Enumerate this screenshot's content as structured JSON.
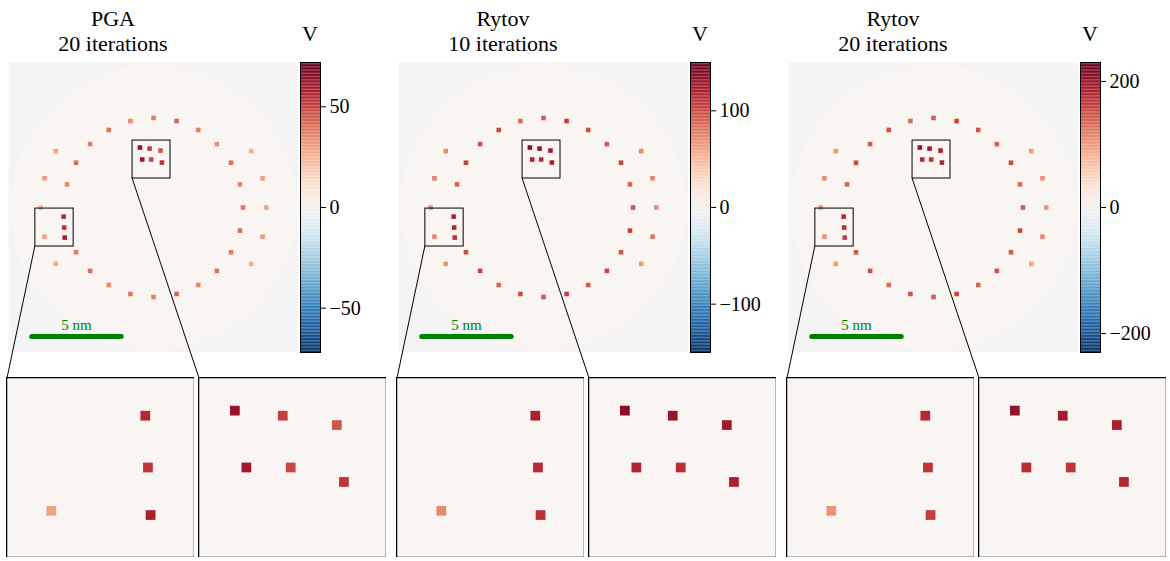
{
  "chart_data": [
    {
      "type": "heatmap",
      "title": "PGA",
      "subtitle": "20 iterations",
      "tick_labels": false,
      "xlim": [
        -8.1,
        8.1
      ],
      "ylim": [
        -8.1,
        8.1
      ],
      "disk_radius": 8,
      "colorbar": {
        "label": "V",
        "range": [
          -72,
          72
        ],
        "ticks": [
          -50,
          0,
          50
        ]
      },
      "scale_bar": {
        "length": 5,
        "label": "5 nm"
      },
      "insets": [
        {
          "xlim": [
            -6.6,
            -4.46
          ],
          "ylim": [
            -2.18,
            -0.06
          ]
        },
        {
          "xlim": [
            -1.17,
            0.95
          ],
          "ylim": [
            1.62,
            3.74
          ]
        }
      ],
      "peaks": {
        "x": [
          5,
          4.83,
          4.33,
          3.54,
          2.5,
          1.29,
          0,
          -1.29,
          -2.5,
          -3.54,
          -4.33,
          -4.83,
          -4.33,
          -3.54,
          -2.5,
          -1.29,
          0,
          1.29,
          2.5,
          3.54,
          4.33,
          4.83,
          -5.02,
          -4.99,
          -4.96,
          -0.76,
          -0.22,
          -0.63,
          -0.13,
          0.39,
          0.47,
          -5.46,
          -6.09,
          -6.3,
          -6.09,
          -5.46,
          5.46,
          6.09,
          6.3,
          6.09,
          5.46
        ],
        "y": [
          0,
          1.29,
          2.5,
          3.54,
          4.33,
          4.83,
          5,
          4.83,
          4.33,
          3.54,
          2.5,
          1.29,
          -2.5,
          -3.54,
          -4.33,
          -4.83,
          -5,
          -4.83,
          -4.33,
          -3.54,
          -2.5,
          -1.29,
          -0.51,
          -1.12,
          -1.68,
          3.35,
          3.29,
          2.68,
          2.68,
          3.18,
          2.51,
          3.15,
          1.63,
          0,
          -1.63,
          -3.15,
          -3.15,
          -1.63,
          0,
          1.63,
          3.15
        ],
        "values": [
          38,
          35,
          40,
          33,
          36,
          42,
          37,
          34,
          39,
          36,
          41,
          35,
          37,
          40,
          34,
          38,
          36,
          42,
          35,
          39,
          37,
          40,
          55,
          52,
          58,
          62,
          50,
          60,
          48,
          45,
          52,
          28,
          30,
          26,
          29,
          27,
          25,
          31,
          28,
          30,
          26
        ]
      }
    },
    {
      "type": "heatmap",
      "title": "Rytov",
      "subtitle": "10 iterations",
      "tick_labels": false,
      "xlim": [
        -8.1,
        8.1
      ],
      "ylim": [
        -8.1,
        8.1
      ],
      "disk_radius": 8,
      "colorbar": {
        "label": "V",
        "range": [
          -150,
          150
        ],
        "ticks": [
          -100,
          0,
          100
        ]
      },
      "scale_bar": {
        "length": 5,
        "label": "5 nm"
      },
      "insets": [
        {
          "xlim": [
            -6.6,
            -4.46
          ],
          "ylim": [
            -2.18,
            -0.06
          ]
        },
        {
          "xlim": [
            -1.17,
            0.95
          ],
          "ylim": [
            1.62,
            3.74
          ]
        }
      ],
      "peaks": {
        "x": [
          5,
          4.83,
          4.33,
          3.54,
          2.5,
          1.29,
          0,
          -1.29,
          -2.5,
          -3.54,
          -4.33,
          -4.83,
          -4.33,
          -3.54,
          -2.5,
          -1.29,
          0,
          1.29,
          2.5,
          3.54,
          4.33,
          4.83,
          -5.02,
          -4.99,
          -4.96,
          -0.76,
          -0.22,
          -0.63,
          -0.13,
          0.39,
          0.47,
          -5.46,
          -6.09,
          -6.3,
          -6.09,
          -5.46,
          5.46,
          6.09,
          6.3,
          6.09,
          5.46
        ],
        "y": [
          0,
          1.29,
          2.5,
          3.54,
          4.33,
          4.83,
          5,
          4.83,
          4.33,
          3.54,
          2.5,
          1.29,
          -2.5,
          -3.54,
          -4.33,
          -4.83,
          -5,
          -4.83,
          -4.33,
          -3.54,
          -2.5,
          -1.29,
          -0.51,
          -1.12,
          -1.68,
          3.35,
          3.29,
          2.68,
          2.68,
          3.18,
          2.51,
          3.15,
          1.63,
          0,
          -1.63,
          -3.15,
          -3.15,
          -1.63,
          0,
          1.63,
          3.15
        ],
        "values": [
          95,
          88,
          102,
          90,
          97,
          105,
          92,
          86,
          99,
          94,
          103,
          89,
          96,
          101,
          87,
          98,
          93,
          106,
          91,
          100,
          95,
          104,
          120,
          115,
          110,
          135,
          128,
          118,
          112,
          125,
          120,
          70,
          75,
          68,
          72,
          66,
          64,
          78,
          71,
          74,
          69
        ]
      }
    },
    {
      "type": "heatmap",
      "title": "Rytov",
      "subtitle": "20 iterations",
      "tick_labels": false,
      "xlim": [
        -8.1,
        8.1
      ],
      "ylim": [
        -8.1,
        8.1
      ],
      "disk_radius": 8,
      "colorbar": {
        "label": "V",
        "range": [
          -230,
          230
        ],
        "ticks": [
          -200,
          0,
          200
        ]
      },
      "scale_bar": {
        "length": 5,
        "label": "5 nm"
      },
      "insets": [
        {
          "xlim": [
            -6.6,
            -4.46
          ],
          "ylim": [
            -2.18,
            -0.06
          ]
        },
        {
          "xlim": [
            -1.17,
            0.95
          ],
          "ylim": [
            1.62,
            3.74
          ]
        }
      ],
      "peaks": {
        "x": [
          5,
          4.83,
          4.33,
          3.54,
          2.5,
          1.29,
          0,
          -1.29,
          -2.5,
          -3.54,
          -4.33,
          -4.83,
          -4.33,
          -3.54,
          -2.5,
          -1.29,
          0,
          1.29,
          2.5,
          3.54,
          4.33,
          4.83,
          -5.02,
          -4.99,
          -4.96,
          -0.76,
          -0.22,
          -0.63,
          -0.13,
          0.39,
          0.47,
          -5.46,
          -6.09,
          -6.3,
          -6.09,
          -5.46,
          5.46,
          6.09,
          6.3,
          6.09,
          5.46
        ],
        "y": [
          0,
          1.29,
          2.5,
          3.54,
          4.33,
          4.83,
          5,
          4.83,
          4.33,
          3.54,
          2.5,
          1.29,
          -2.5,
          -3.54,
          -4.33,
          -4.83,
          -5,
          -4.83,
          -4.33,
          -3.54,
          -2.5,
          -1.29,
          -0.51,
          -1.12,
          -1.68,
          3.35,
          3.29,
          2.68,
          2.68,
          3.18,
          2.51,
          3.15,
          1.63,
          0,
          -1.63,
          -3.15,
          -3.15,
          -1.63,
          0,
          1.63,
          3.15
        ],
        "values": [
          140,
          132,
          150,
          135,
          145,
          155,
          138,
          130,
          148,
          141,
          152,
          134,
          143,
          149,
          131,
          146,
          139,
          156,
          136,
          147,
          142,
          153,
          175,
          168,
          160,
          200,
          190,
          172,
          165,
          185,
          178,
          100,
          108,
          96,
          104,
          95,
          92,
          110,
          101,
          106,
          98
        ]
      }
    }
  ]
}
